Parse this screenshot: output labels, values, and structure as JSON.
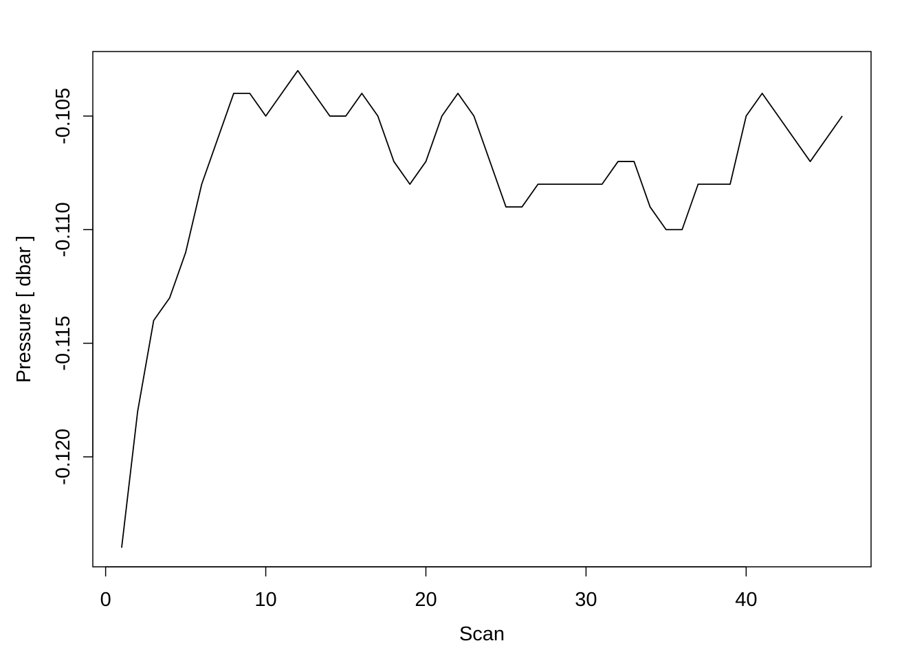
{
  "chart_data": {
    "type": "line",
    "title": "",
    "xlabel": "Scan",
    "ylabel": "Pressure [ dbar ]",
    "xlim": [
      -0.8,
      47.8
    ],
    "ylim": [
      -0.12484,
      -0.10216
    ],
    "xticks": [
      0,
      10,
      20,
      30,
      40
    ],
    "xtick_labels": [
      "0",
      "10",
      "20",
      "30",
      "40"
    ],
    "yticks": [
      -0.105,
      -0.11,
      -0.115,
      -0.12
    ],
    "ytick_labels": [
      "-0.105",
      "-0.110",
      "-0.115",
      "-0.120"
    ],
    "grid": false,
    "line_color": "#000000",
    "x": [
      1,
      2,
      3,
      4,
      5,
      6,
      7,
      8,
      9,
      10,
      11,
      12,
      13,
      14,
      15,
      16,
      17,
      18,
      19,
      20,
      21,
      22,
      23,
      24,
      25,
      26,
      27,
      28,
      29,
      30,
      31,
      32,
      33,
      34,
      35,
      36,
      37,
      38,
      39,
      40,
      41,
      42,
      43,
      44,
      45,
      46
    ],
    "y": [
      -0.124,
      -0.118,
      -0.114,
      -0.113,
      -0.111,
      -0.108,
      -0.106,
      -0.104,
      -0.104,
      -0.105,
      -0.104,
      -0.103,
      -0.104,
      -0.105,
      -0.105,
      -0.104,
      -0.105,
      -0.107,
      -0.108,
      -0.107,
      -0.105,
      -0.104,
      -0.105,
      -0.107,
      -0.109,
      -0.109,
      -0.108,
      -0.108,
      -0.108,
      -0.108,
      -0.108,
      -0.107,
      -0.107,
      -0.109,
      -0.11,
      -0.11,
      -0.108,
      -0.108,
      -0.108,
      -0.105,
      -0.104,
      -0.105,
      -0.106,
      -0.107,
      -0.106,
      -0.105
    ]
  }
}
